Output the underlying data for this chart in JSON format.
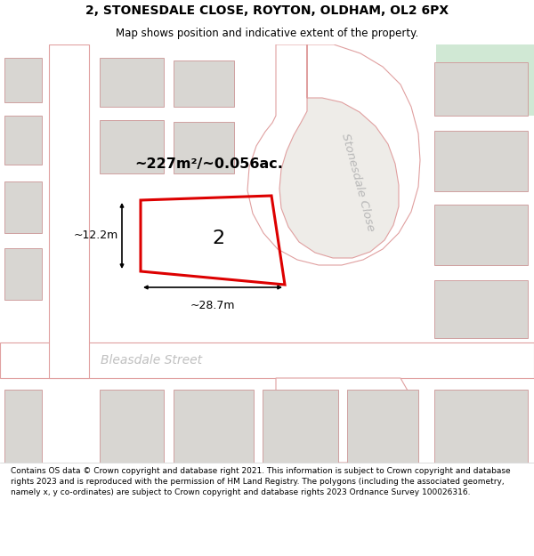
{
  "title": "2, STONESDALE CLOSE, ROYTON, OLDHAM, OL2 6PX",
  "subtitle": "Map shows position and indicative extent of the property.",
  "footer": "Contains OS data © Crown copyright and database right 2021. This information is subject to Crown copyright and database rights 2023 and is reproduced with the permission of HM Land Registry. The polygons (including the associated geometry, namely x, y co-ordinates) are subject to Crown copyright and database rights 2023 Ordnance Survey 100026316.",
  "bg_color": "#eeece8",
  "road_fill": "#ffffff",
  "road_stroke": "#e0a0a0",
  "building_fill": "#d8d6d2",
  "building_stroke": "#d0a0a0",
  "property_stroke": "#dd0000",
  "area_text": "~227m²/~0.056ac.",
  "label_2": "2",
  "dim_width": "~28.7m",
  "dim_height": "~12.2m",
  "street_stonesdale": "Stonesdale Close",
  "street_bleasdale": "Bleasdale Street",
  "green_color": "#d0e8d4",
  "title_fontsize": 10,
  "subtitle_fontsize": 8.5,
  "footer_fontsize": 6.5
}
